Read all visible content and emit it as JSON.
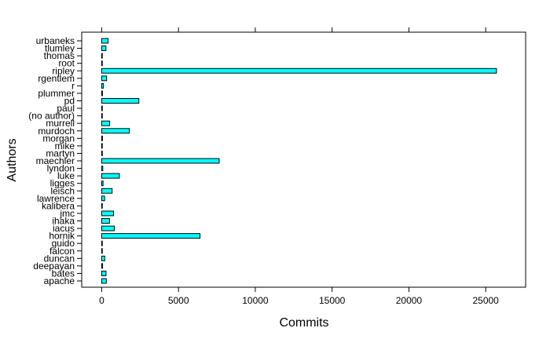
{
  "chart_data": {
    "type": "bar",
    "orientation": "horizontal",
    "xlabel": "Commits",
    "ylabel": "Authors",
    "xlim": [
      -1300,
      27600
    ],
    "xticks": [
      0,
      5000,
      10000,
      15000,
      20000,
      25000
    ],
    "xtick_labels": [
      "0",
      "5000",
      "10000",
      "15000",
      "20000",
      "25000"
    ],
    "grid": false,
    "bar_color": "#00ffff",
    "bar_edge_color": "#000000",
    "categories": [
      "apache",
      "bates",
      "deepayan",
      "duncan",
      "falcon",
      "guido",
      "hornik",
      "iacus",
      "ihaka",
      "jmc",
      "kalibera",
      "lawrence",
      "leisch",
      "ligges",
      "luke",
      "lyndon",
      "maechler",
      "martyn",
      "mike",
      "morgan",
      "murdoch",
      "murrell",
      "(no author)",
      "paul",
      "pd",
      "plummer",
      "r",
      "rgentlem",
      "ripley",
      "root",
      "thomas",
      "tlumley",
      "urbaneks"
    ],
    "values": [
      300,
      280,
      60,
      200,
      30,
      5,
      6400,
      820,
      510,
      770,
      40,
      190,
      680,
      90,
      1150,
      70,
      7650,
      40,
      10,
      50,
      1800,
      520,
      10,
      10,
      2420,
      50,
      110,
      320,
      25700,
      10,
      30,
      280,
      420
    ]
  }
}
